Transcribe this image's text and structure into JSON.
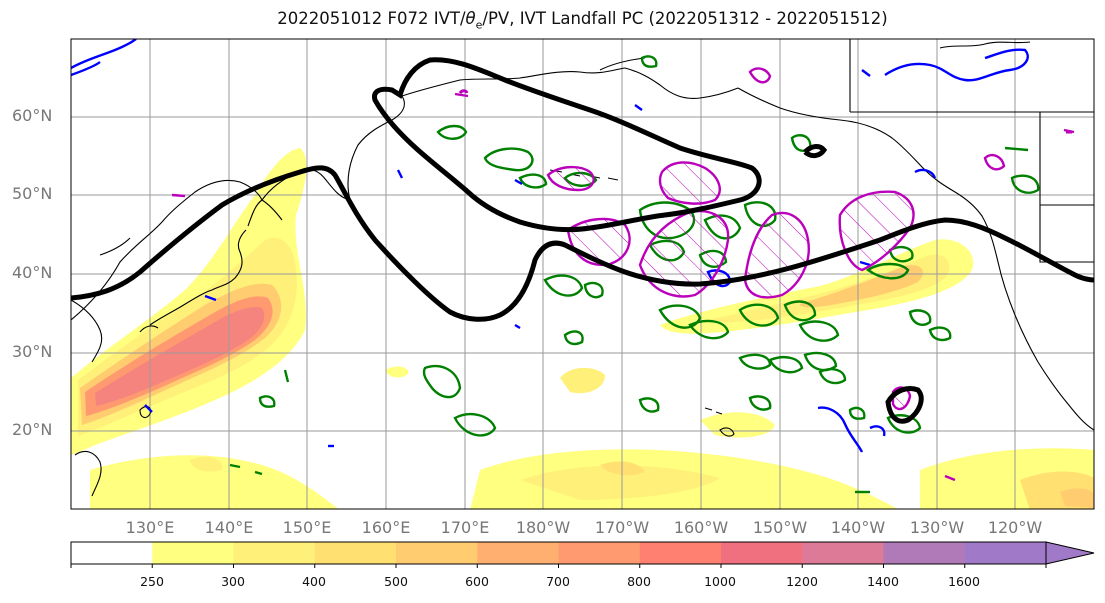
{
  "title": {
    "pre": "2022051012 F072 IVT/",
    "theta": "θ",
    "theta_sub": "e",
    "post": "/PV, IVT Landfall PC (2022051312 - 2022051512)"
  },
  "map": {
    "lat_labels": [
      "60°N",
      "50°N",
      "40°N",
      "30°N",
      "20°N"
    ],
    "lon_labels": [
      "130°E",
      "140°E",
      "150°E",
      "160°E",
      "170°E",
      "180°W",
      "170°W",
      "160°W",
      "150°W",
      "140°W",
      "130°W",
      "120°W"
    ],
    "colors": {
      "coast": "#000000",
      "grid": "#9a9a9a",
      "pv_contour": "#008000",
      "theta_contour": "#0000ff",
      "pc_contour": "#bb00bb",
      "landfall_contour": "#000000"
    }
  },
  "colorbar": {
    "ticks": [
      "250",
      "300",
      "400",
      "500",
      "600",
      "700",
      "800",
      "1000",
      "1200",
      "1400",
      "1600"
    ],
    "colors": [
      "#ffffff",
      "#ffff80",
      "#fff07a",
      "#ffe070",
      "#ffcc70",
      "#ffb070",
      "#ff9a70",
      "#ff8070",
      "#f07080",
      "#dd7a98",
      "#b07ab8",
      "#a07ac8"
    ]
  }
}
